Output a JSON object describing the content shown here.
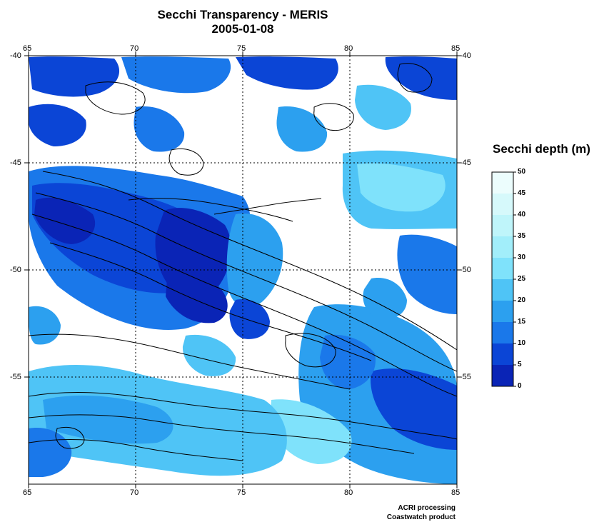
{
  "title": "Secchi Transparency - MERIS",
  "date": "2005-01-08",
  "map": {
    "lon_ticks": [
      "65",
      "70",
      "75",
      "80",
      "85"
    ],
    "lat_ticks": [
      "-40",
      "-45",
      "-50",
      "-55"
    ],
    "lon_range": [
      65,
      85
    ],
    "lat_range": [
      -60,
      -40
    ],
    "grid": true
  },
  "colorbar": {
    "title": "Secchi depth (m)",
    "labels": [
      "50",
      "45",
      "40",
      "35",
      "30",
      "25",
      "20",
      "15",
      "10",
      "5",
      "0"
    ],
    "colors": [
      "#ecfdfd",
      "#d6f9fb",
      "#bff5fa",
      "#a2eefa",
      "#7fe2fb",
      "#4fc4f6",
      "#2ca0ef",
      "#1a78ea",
      "#0b45d6",
      "#0a24b6"
    ]
  },
  "credits": {
    "line1": "ACRI processing",
    "line2": "Coastwatch product"
  }
}
